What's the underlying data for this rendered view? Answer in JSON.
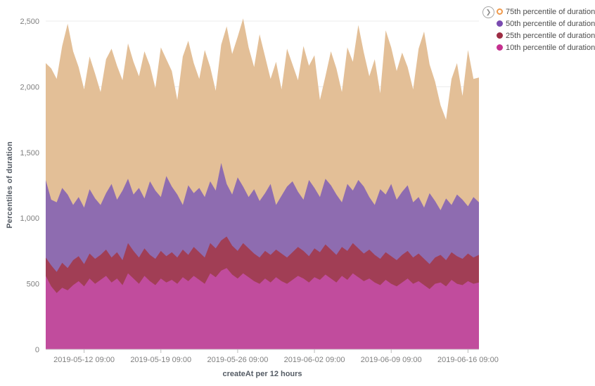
{
  "chart_data": {
    "type": "area",
    "mode": "overlap",
    "title": "",
    "xlabel": "createAt per 12 hours",
    "ylabel": "Percentiles of duration",
    "ylim": [
      0,
      2500
    ],
    "grid": true,
    "legend_position": "right",
    "y_ticks": [
      {
        "value": 0,
        "label": "0"
      },
      {
        "value": 500,
        "label": "500"
      },
      {
        "value": 1000,
        "label": "1,000"
      },
      {
        "value": 1500,
        "label": "1,500"
      },
      {
        "value": 2000,
        "label": "2,000"
      },
      {
        "value": 2500,
        "label": "2,500"
      }
    ],
    "x_ticks": [
      {
        "index": 7,
        "label": "2019-05-12 09:00"
      },
      {
        "index": 21,
        "label": "2019-05-19 09:00"
      },
      {
        "index": 35,
        "label": "2019-05-26 09:00"
      },
      {
        "index": 49,
        "label": "2019-06-02 09:00"
      },
      {
        "index": 63,
        "label": "2019-06-09 09:00"
      },
      {
        "index": 77,
        "label": "2019-06-16 09:00"
      }
    ],
    "series": [
      {
        "name": "75th percentile of duration",
        "color": "#e3bf97",
        "dot_color": "#f09a4c",
        "dot_style": "ring",
        "values": [
          2180,
          2140,
          2060,
          2310,
          2480,
          2270,
          2150,
          1980,
          2230,
          2100,
          1960,
          2210,
          2290,
          2160,
          2050,
          2330,
          2190,
          2080,
          2270,
          2160,
          1990,
          2300,
          2210,
          2120,
          1900,
          2230,
          2350,
          2180,
          2060,
          2280,
          2150,
          1970,
          2320,
          2460,
          2250,
          2380,
          2520,
          2300,
          2150,
          2400,
          2230,
          2060,
          2190,
          1980,
          2290,
          2170,
          2050,
          2310,
          2160,
          2240,
          1900,
          2080,
          2270,
          2140,
          1960,
          2300,
          2190,
          2470,
          2260,
          2080,
          2210,
          1950,
          2430,
          2300,
          2120,
          2260,
          2150,
          1980,
          2290,
          2420,
          2170,
          2040,
          1860,
          1750,
          2060,
          2180,
          1930,
          2280,
          2060,
          2070
        ]
      },
      {
        "name": "50th percentile of duration",
        "color": "#8e6cb0",
        "dot_color": "#7a4bb0",
        "dot_style": "solid",
        "values": [
          1290,
          1140,
          1120,
          1230,
          1180,
          1100,
          1160,
          1080,
          1220,
          1150,
          1100,
          1190,
          1260,
          1140,
          1210,
          1300,
          1180,
          1230,
          1150,
          1280,
          1210,
          1160,
          1320,
          1240,
          1180,
          1100,
          1250,
          1190,
          1230,
          1160,
          1280,
          1210,
          1420,
          1260,
          1180,
          1310,
          1240,
          1160,
          1220,
          1130,
          1190,
          1260,
          1100,
          1170,
          1240,
          1280,
          1200,
          1140,
          1290,
          1230,
          1160,
          1300,
          1250,
          1180,
          1120,
          1260,
          1210,
          1290,
          1240,
          1160,
          1100,
          1220,
          1180,
          1260,
          1140,
          1200,
          1250,
          1120,
          1160,
          1080,
          1190,
          1130,
          1060,
          1150,
          1100,
          1180,
          1140,
          1090,
          1160,
          1120
        ]
      },
      {
        "name": "25th percentile of duration",
        "color": "#a13e55",
        "dot_color": "#9d2d44",
        "dot_style": "solid",
        "values": [
          700,
          640,
          590,
          660,
          620,
          680,
          710,
          650,
          730,
          690,
          720,
          760,
          700,
          740,
          680,
          810,
          750,
          700,
          770,
          720,
          690,
          750,
          710,
          740,
          700,
          760,
          720,
          780,
          740,
          700,
          810,
          770,
          830,
          860,
          790,
          750,
          810,
          770,
          730,
          700,
          750,
          720,
          760,
          730,
          700,
          740,
          780,
          750,
          710,
          770,
          740,
          800,
          760,
          720,
          780,
          750,
          810,
          770,
          730,
          760,
          720,
          690,
          740,
          710,
          680,
          720,
          750,
          700,
          730,
          690,
          650,
          700,
          720,
          680,
          740,
          710,
          690,
          730,
          700,
          720
        ]
      },
      {
        "name": "10th percentile of duration",
        "color": "#c14c9d",
        "dot_color": "#c5308f",
        "dot_style": "solid",
        "values": [
          560,
          480,
          430,
          470,
          450,
          490,
          520,
          480,
          540,
          500,
          530,
          560,
          510,
          540,
          490,
          580,
          540,
          500,
          560,
          520,
          490,
          540,
          510,
          530,
          500,
          550,
          520,
          560,
          530,
          500,
          580,
          550,
          600,
          620,
          570,
          540,
          580,
          550,
          520,
          500,
          540,
          510,
          550,
          520,
          500,
          530,
          560,
          540,
          510,
          550,
          530,
          570,
          540,
          510,
          560,
          530,
          580,
          550,
          520,
          540,
          510,
          490,
          530,
          500,
          480,
          510,
          540,
          500,
          520,
          490,
          460,
          500,
          510,
          480,
          530,
          500,
          490,
          520,
          500,
          510
        ]
      }
    ]
  },
  "legend": {
    "collapse_icon": "❯"
  }
}
